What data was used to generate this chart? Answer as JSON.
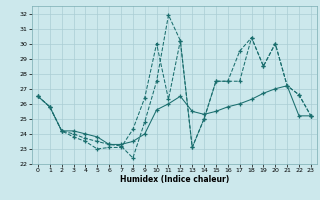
{
  "xlabel": "Humidex (Indice chaleur)",
  "bg_color": "#cce8ec",
  "grid_color": "#aacdd4",
  "line_color": "#1a6e6e",
  "xlim": [
    -0.5,
    23.5
  ],
  "ylim": [
    22,
    32.5
  ],
  "xticks": [
    0,
    1,
    2,
    3,
    4,
    5,
    6,
    7,
    8,
    9,
    10,
    11,
    12,
    13,
    14,
    15,
    16,
    17,
    18,
    19,
    20,
    21,
    22,
    23
  ],
  "yticks": [
    22,
    23,
    24,
    25,
    26,
    27,
    28,
    29,
    30,
    31,
    32
  ],
  "line1_x": [
    0,
    1,
    2,
    3,
    4,
    5,
    6,
    7,
    8,
    9,
    10,
    11,
    12,
    13,
    14,
    15,
    16,
    17,
    18,
    19,
    20,
    21,
    22,
    23
  ],
  "line1_y": [
    26.5,
    25.8,
    24.2,
    23.8,
    23.5,
    23.0,
    23.1,
    23.1,
    24.3,
    26.4,
    30.0,
    26.3,
    30.2,
    23.1,
    25.0,
    27.5,
    27.5,
    27.5,
    30.4,
    28.5,
    30.0,
    27.2,
    26.6,
    25.2
  ],
  "line2_x": [
    0,
    1,
    2,
    3,
    4,
    5,
    6,
    7,
    8,
    9,
    10,
    11,
    12,
    13,
    14,
    15,
    16,
    17,
    18,
    19,
    20,
    21,
    22,
    23
  ],
  "line2_y": [
    26.5,
    25.8,
    24.2,
    24.2,
    24.0,
    23.8,
    23.3,
    23.3,
    23.5,
    24.0,
    25.6,
    26.0,
    26.5,
    25.5,
    25.3,
    25.5,
    25.8,
    26.0,
    26.3,
    26.7,
    27.0,
    27.2,
    25.2,
    25.2
  ],
  "line3_x": [
    0,
    1,
    2,
    3,
    4,
    5,
    6,
    7,
    8,
    9,
    10,
    11,
    12,
    13,
    14,
    15,
    16,
    17,
    18,
    19,
    20,
    21,
    22,
    23
  ],
  "line3_y": [
    26.5,
    25.8,
    24.2,
    24.0,
    23.7,
    23.5,
    23.3,
    23.2,
    22.4,
    24.8,
    27.5,
    31.9,
    30.2,
    23.1,
    25.0,
    27.5,
    27.5,
    29.5,
    30.4,
    28.5,
    30.0,
    27.2,
    26.6,
    25.2
  ]
}
